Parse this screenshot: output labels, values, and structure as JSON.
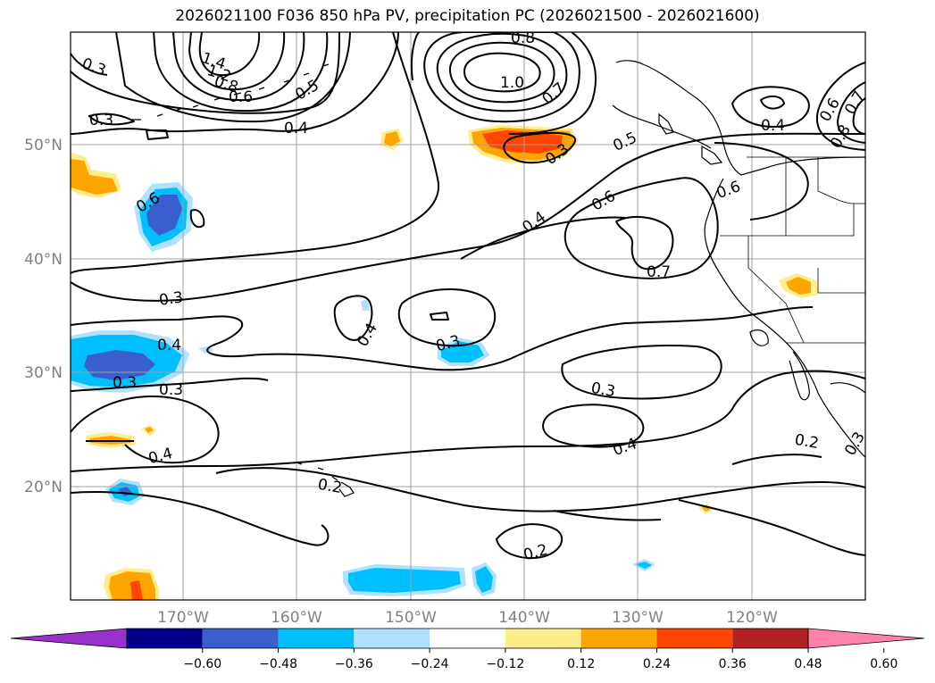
{
  "title": "2026021100 F036 850 hPa PV, precipitation PC (2026021500 - 2026021600)",
  "lat_labels": [
    "50°N",
    "40°N",
    "30°N",
    "20°N"
  ],
  "lon_labels": [
    "170°W",
    "160°W",
    "150°W",
    "140°W",
    "130°W",
    "120°W"
  ],
  "colorbar": {
    "ticks": [
      "−0.60",
      "−0.48",
      "−0.36",
      "−0.24",
      "−0.12",
      "0.12",
      "0.24",
      "0.36",
      "0.48",
      "0.60"
    ],
    "colors": [
      "#9932cc",
      "#00008b",
      "#3a5fcd",
      "#00bfff",
      "#b0e2ff",
      "#ffffff",
      "#ffec8b",
      "#ffa500",
      "#ff4500",
      "#b22222",
      "#ff82ab"
    ]
  },
  "contour_labels": [
    {
      "text": "0.3"
    },
    {
      "text": "1.4"
    },
    {
      "text": "1.2"
    },
    {
      "text": "0.8"
    },
    {
      "text": "0.6"
    },
    {
      "text": "0.5"
    },
    {
      "text": "0.4"
    },
    {
      "text": "0.3"
    },
    {
      "text": "0.6"
    },
    {
      "text": "1.0"
    },
    {
      "text": "0.8"
    },
    {
      "text": "0.7"
    },
    {
      "text": "0.3"
    },
    {
      "text": "0.5"
    },
    {
      "text": "0.4"
    },
    {
      "text": "0.6"
    },
    {
      "text": "0.7"
    },
    {
      "text": "0.6"
    },
    {
      "text": "0.4"
    },
    {
      "text": "0.6"
    },
    {
      "text": "0.8"
    },
    {
      "text": "0.7"
    },
    {
      "text": "0.3"
    },
    {
      "text": "0.4"
    },
    {
      "text": "0.3"
    },
    {
      "text": "0.3"
    },
    {
      "text": "0.4"
    },
    {
      "text": "0.3"
    },
    {
      "text": "0.3"
    },
    {
      "text": "0.4"
    },
    {
      "text": "0.2"
    },
    {
      "text": "0.2"
    },
    {
      "text": "0.2"
    },
    {
      "text": "0.4"
    },
    {
      "text": "0.3"
    }
  ]
}
